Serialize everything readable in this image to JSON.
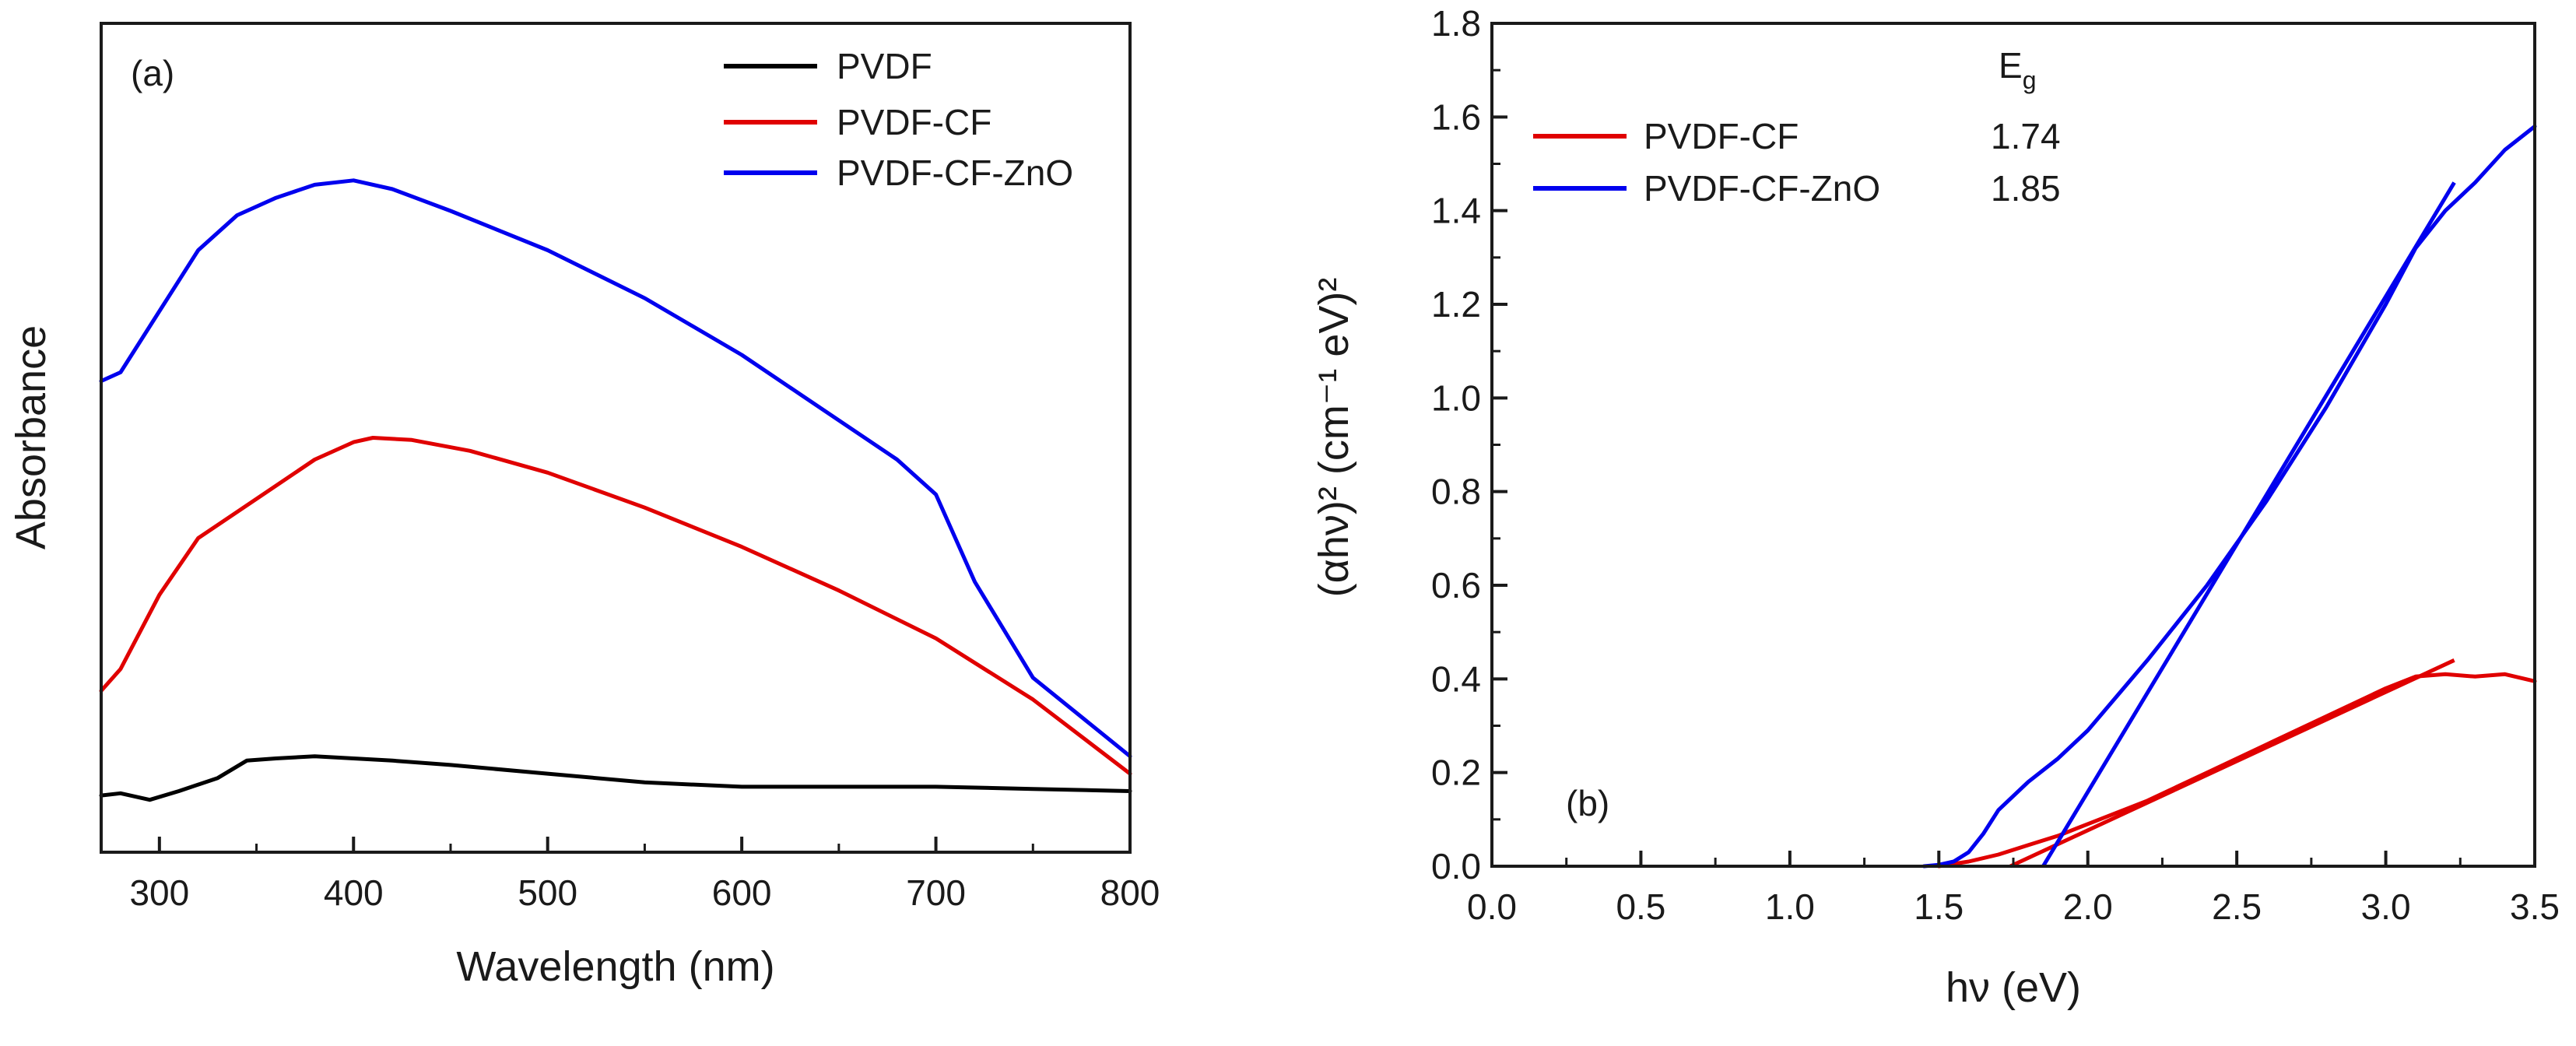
{
  "chart_data": [
    {
      "type": "line",
      "panel_label": "(a)",
      "xlabel": "Wavelength (nm)",
      "ylabel": "Absorbance",
      "xlim": [
        270,
        800
      ],
      "ylim": [
        0,
        1.9
      ],
      "xticks": [
        300,
        400,
        500,
        600,
        700,
        800
      ],
      "x_tick_labels": [
        "300",
        "400",
        "500",
        "600",
        "700",
        "800"
      ],
      "yticks_shown": false,
      "legend": {
        "location": "top-right"
      },
      "series": [
        {
          "name": "PVDF",
          "color": "#000000",
          "x": [
            270,
            280,
            295,
            310,
            330,
            345,
            360,
            380,
            400,
            420,
            450,
            500,
            550,
            600,
            650,
            700,
            750,
            800
          ],
          "y": [
            0.13,
            0.135,
            0.12,
            0.14,
            0.17,
            0.21,
            0.215,
            0.22,
            0.215,
            0.21,
            0.2,
            0.18,
            0.16,
            0.15,
            0.15,
            0.15,
            0.145,
            0.14
          ]
        },
        {
          "name": "PVDF-CF",
          "color": "#e00000",
          "x": [
            270,
            280,
            300,
            320,
            340,
            360,
            380,
            400,
            410,
            430,
            460,
            500,
            550,
            600,
            650,
            700,
            750,
            800
          ],
          "y": [
            0.37,
            0.42,
            0.59,
            0.72,
            0.78,
            0.84,
            0.9,
            0.94,
            0.95,
            0.945,
            0.92,
            0.87,
            0.79,
            0.7,
            0.6,
            0.49,
            0.35,
            0.18
          ]
        },
        {
          "name": "PVDF-CF-ZnO",
          "color": "#0000ee",
          "x": [
            270,
            280,
            300,
            320,
            340,
            360,
            380,
            400,
            420,
            450,
            500,
            550,
            600,
            650,
            680,
            700,
            720,
            750,
            800
          ],
          "y": [
            1.08,
            1.1,
            1.24,
            1.38,
            1.46,
            1.5,
            1.53,
            1.54,
            1.52,
            1.47,
            1.38,
            1.27,
            1.14,
            0.99,
            0.9,
            0.82,
            0.62,
            0.4,
            0.22
          ]
        }
      ]
    },
    {
      "type": "line",
      "panel_label": "(b)",
      "xlabel": "hν (eV)",
      "ylabel": "(αhν)² (cm⁻¹ eV)²",
      "xlim": [
        0.0,
        3.5
      ],
      "ylim": [
        0.0,
        1.8
      ],
      "xticks": [
        0.0,
        0.5,
        1.0,
        1.5,
        2.0,
        2.5,
        3.0,
        3.5
      ],
      "x_tick_labels": [
        "0.0",
        "0.5",
        "1.0",
        "1.5",
        "2.0",
        "2.5",
        "3.0",
        "3.5"
      ],
      "yticks": [
        0.0,
        0.2,
        0.4,
        0.6,
        0.8,
        1.0,
        1.2,
        1.4,
        1.6,
        1.8
      ],
      "y_tick_labels": [
        "0.0",
        "0.2",
        "0.4",
        "0.6",
        "0.8",
        "1.0",
        "1.2",
        "1.4",
        "1.6",
        "1.8"
      ],
      "legend": {
        "location": "top-left",
        "header": "E",
        "header_subscript": "g"
      },
      "series": [
        {
          "name": "PVDF-CF",
          "eg": "1.74",
          "color": "#e00000",
          "x": [
            1.5,
            1.6,
            1.7,
            1.8,
            1.9,
            2.0,
            2.2,
            2.4,
            2.6,
            2.8,
            3.0,
            3.1,
            3.2,
            3.3,
            3.4,
            3.5
          ],
          "y": [
            0.0,
            0.01,
            0.025,
            0.045,
            0.065,
            0.09,
            0.14,
            0.2,
            0.26,
            0.32,
            0.38,
            0.405,
            0.41,
            0.405,
            0.41,
            0.395
          ],
          "fit_x": [
            1.74,
            3.23
          ],
          "fit_y": [
            0.0,
            0.44
          ]
        },
        {
          "name": "PVDF-CF-ZnO",
          "eg": "1.85",
          "color": "#0000ee",
          "x": [
            1.45,
            1.5,
            1.55,
            1.6,
            1.65,
            1.7,
            1.8,
            1.9,
            2.0,
            2.2,
            2.4,
            2.6,
            2.8,
            3.0,
            3.1,
            3.2,
            3.3,
            3.4,
            3.5
          ],
          "y": [
            0.0,
            0.003,
            0.01,
            0.03,
            0.07,
            0.12,
            0.18,
            0.23,
            0.29,
            0.44,
            0.6,
            0.78,
            0.98,
            1.2,
            1.32,
            1.4,
            1.46,
            1.53,
            1.58
          ],
          "fit_x": [
            1.85,
            3.23
          ],
          "fit_y": [
            0.0,
            1.46
          ]
        }
      ]
    }
  ]
}
